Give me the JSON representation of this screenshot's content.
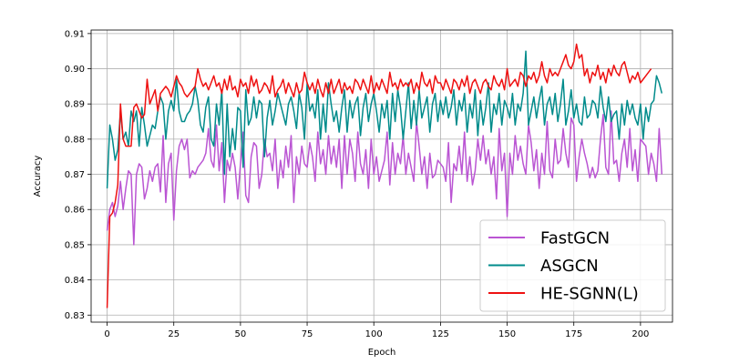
{
  "chart_data": {
    "type": "line",
    "xlabel": "Epoch",
    "ylabel": "Accuracy",
    "xlim": [
      -6,
      212
    ],
    "ylim": [
      0.828,
      0.911
    ],
    "xticks": [
      0,
      25,
      50,
      75,
      100,
      125,
      150,
      175,
      200
    ],
    "xtick_labels": [
      "0",
      "25",
      "50",
      "75",
      "100",
      "125",
      "150",
      "175",
      "200"
    ],
    "yticks": [
      0.83,
      0.84,
      0.85,
      0.86,
      0.87,
      0.88,
      0.89,
      0.9,
      0.91
    ],
    "ytick_labels": [
      "0.83",
      "0.84",
      "0.85",
      "0.86",
      "0.87",
      "0.88",
      "0.89",
      "0.90",
      "0.91"
    ],
    "grid": true,
    "legend_position": "lower-right",
    "series": [
      {
        "name": "FastGCN",
        "color": "#ba55d3",
        "x_start": 0,
        "x_step": 1,
        "values": [
          0.854,
          0.86,
          0.862,
          0.858,
          0.861,
          0.868,
          0.86,
          0.866,
          0.871,
          0.87,
          0.85,
          0.87,
          0.873,
          0.872,
          0.863,
          0.866,
          0.871,
          0.868,
          0.872,
          0.873,
          0.865,
          0.881,
          0.862,
          0.873,
          0.876,
          0.857,
          0.871,
          0.878,
          0.88,
          0.877,
          0.88,
          0.869,
          0.871,
          0.87,
          0.872,
          0.873,
          0.874,
          0.876,
          0.883,
          0.874,
          0.872,
          0.884,
          0.871,
          0.879,
          0.862,
          0.874,
          0.871,
          0.876,
          0.872,
          0.863,
          0.873,
          0.882,
          0.864,
          0.862,
          0.875,
          0.879,
          0.878,
          0.866,
          0.87,
          0.88,
          0.875,
          0.876,
          0.871,
          0.88,
          0.866,
          0.874,
          0.869,
          0.878,
          0.872,
          0.881,
          0.862,
          0.875,
          0.87,
          0.878,
          0.873,
          0.872,
          0.879,
          0.875,
          0.868,
          0.882,
          0.873,
          0.877,
          0.87,
          0.881,
          0.873,
          0.878,
          0.872,
          0.88,
          0.866,
          0.881,
          0.87,
          0.88,
          0.876,
          0.868,
          0.882,
          0.873,
          0.87,
          0.877,
          0.866,
          0.88,
          0.87,
          0.875,
          0.868,
          0.871,
          0.874,
          0.882,
          0.867,
          0.879,
          0.87,
          0.876,
          0.873,
          0.881,
          0.87,
          0.876,
          0.872,
          0.868,
          0.885,
          0.878,
          0.87,
          0.875,
          0.866,
          0.876,
          0.869,
          0.87,
          0.874,
          0.873,
          0.872,
          0.868,
          0.879,
          0.862,
          0.873,
          0.871,
          0.878,
          0.87,
          0.882,
          0.868,
          0.875,
          0.867,
          0.871,
          0.88,
          0.874,
          0.881,
          0.873,
          0.877,
          0.87,
          0.875,
          0.863,
          0.883,
          0.871,
          0.876,
          0.858,
          0.876,
          0.87,
          0.881,
          0.874,
          0.878,
          0.873,
          0.87,
          0.884,
          0.879,
          0.871,
          0.877,
          0.866,
          0.876,
          0.87,
          0.885,
          0.871,
          0.869,
          0.88,
          0.873,
          0.874,
          0.883,
          0.876,
          0.872,
          0.886,
          0.884,
          0.868,
          0.875,
          0.88,
          0.876,
          0.873,
          0.869,
          0.872,
          0.869,
          0.871,
          0.88,
          0.887,
          0.872,
          0.87,
          0.888,
          0.873,
          0.874,
          0.868,
          0.876,
          0.88,
          0.872,
          0.883,
          0.871,
          0.877,
          0.868,
          0.88,
          0.879,
          0.878,
          0.87,
          0.876,
          0.873,
          0.868,
          0.883,
          0.87
        ]
      },
      {
        "name": "ASGCN",
        "color": "#008b8b",
        "x_start": 0,
        "x_step": 1,
        "values": [
          0.866,
          0.884,
          0.88,
          0.874,
          0.877,
          0.888,
          0.88,
          0.882,
          0.878,
          0.888,
          0.885,
          0.888,
          0.878,
          0.889,
          0.884,
          0.878,
          0.881,
          0.884,
          0.883,
          0.888,
          0.892,
          0.89,
          0.88,
          0.888,
          0.891,
          0.888,
          0.897,
          0.888,
          0.885,
          0.885,
          0.887,
          0.888,
          0.89,
          0.895,
          0.891,
          0.884,
          0.882,
          0.889,
          0.892,
          0.88,
          0.878,
          0.89,
          0.884,
          0.894,
          0.87,
          0.89,
          0.875,
          0.883,
          0.877,
          0.889,
          0.888,
          0.872,
          0.894,
          0.884,
          0.886,
          0.892,
          0.886,
          0.891,
          0.89,
          0.875,
          0.886,
          0.891,
          0.884,
          0.888,
          0.893,
          0.89,
          0.887,
          0.884,
          0.89,
          0.892,
          0.888,
          0.883,
          0.893,
          0.889,
          0.88,
          0.896,
          0.888,
          0.89,
          0.886,
          0.894,
          0.88,
          0.89,
          0.882,
          0.896,
          0.89,
          0.885,
          0.888,
          0.882,
          0.889,
          0.894,
          0.882,
          0.891,
          0.886,
          0.89,
          0.892,
          0.881,
          0.889,
          0.893,
          0.885,
          0.89,
          0.893,
          0.888,
          0.882,
          0.89,
          0.886,
          0.891,
          0.88,
          0.893,
          0.885,
          0.894,
          0.889,
          0.88,
          0.888,
          0.896,
          0.883,
          0.891,
          0.884,
          0.894,
          0.886,
          0.889,
          0.892,
          0.882,
          0.89,
          0.893,
          0.885,
          0.891,
          0.887,
          0.892,
          0.886,
          0.889,
          0.894,
          0.884,
          0.891,
          0.888,
          0.893,
          0.882,
          0.89,
          0.886,
          0.894,
          0.881,
          0.891,
          0.884,
          0.889,
          0.896,
          0.882,
          0.89,
          0.887,
          0.893,
          0.884,
          0.891,
          0.889,
          0.886,
          0.893,
          0.884,
          0.89,
          0.888,
          0.893,
          0.905,
          0.884,
          0.888,
          0.892,
          0.886,
          0.891,
          0.895,
          0.884,
          0.89,
          0.892,
          0.887,
          0.893,
          0.885,
          0.89,
          0.897,
          0.884,
          0.888,
          0.894,
          0.886,
          0.89,
          0.885,
          0.884,
          0.892,
          0.886,
          0.887,
          0.891,
          0.89,
          0.886,
          0.895,
          0.889,
          0.885,
          0.892,
          0.885,
          0.887,
          0.888,
          0.88,
          0.89,
          0.884,
          0.891,
          0.887,
          0.89,
          0.886,
          0.884,
          0.89,
          0.88,
          0.889,
          0.885,
          0.89,
          0.891,
          0.898,
          0.896,
          0.893
        ]
      },
      {
        "name": "HE-SGNN(L)",
        "color": "#ee1111",
        "x_start": 0,
        "x_step": 1,
        "values": [
          0.832,
          0.858,
          0.859,
          0.862,
          0.867,
          0.89,
          0.88,
          0.878,
          0.878,
          0.878,
          0.889,
          0.89,
          0.888,
          0.886,
          0.887,
          0.897,
          0.89,
          0.892,
          0.894,
          0.888,
          0.893,
          0.894,
          0.895,
          0.894,
          0.892,
          0.895,
          0.898,
          0.896,
          0.895,
          0.893,
          0.892,
          0.893,
          0.894,
          0.895,
          0.9,
          0.897,
          0.895,
          0.896,
          0.894,
          0.896,
          0.898,
          0.895,
          0.896,
          0.893,
          0.897,
          0.894,
          0.898,
          0.894,
          0.895,
          0.892,
          0.897,
          0.895,
          0.896,
          0.893,
          0.898,
          0.895,
          0.897,
          0.893,
          0.894,
          0.896,
          0.895,
          0.893,
          0.898,
          0.892,
          0.894,
          0.895,
          0.897,
          0.893,
          0.896,
          0.894,
          0.892,
          0.896,
          0.893,
          0.894,
          0.899,
          0.896,
          0.894,
          0.896,
          0.893,
          0.897,
          0.894,
          0.892,
          0.896,
          0.893,
          0.897,
          0.893,
          0.895,
          0.897,
          0.893,
          0.896,
          0.894,
          0.895,
          0.893,
          0.897,
          0.896,
          0.894,
          0.897,
          0.895,
          0.893,
          0.898,
          0.893,
          0.896,
          0.894,
          0.897,
          0.895,
          0.893,
          0.899,
          0.895,
          0.896,
          0.894,
          0.897,
          0.895,
          0.896,
          0.895,
          0.897,
          0.893,
          0.896,
          0.894,
          0.899,
          0.896,
          0.895,
          0.897,
          0.893,
          0.898,
          0.896,
          0.896,
          0.894,
          0.897,
          0.895,
          0.893,
          0.897,
          0.896,
          0.894,
          0.897,
          0.895,
          0.898,
          0.893,
          0.896,
          0.897,
          0.895,
          0.893,
          0.896,
          0.897,
          0.895,
          0.894,
          0.898,
          0.896,
          0.895,
          0.897,
          0.894,
          0.9,
          0.895,
          0.896,
          0.897,
          0.895,
          0.899,
          0.898,
          0.895,
          0.898,
          0.897,
          0.899,
          0.896,
          0.898,
          0.902,
          0.898,
          0.896,
          0.9,
          0.898,
          0.899,
          0.898,
          0.9,
          0.902,
          0.904,
          0.901,
          0.9,
          0.902,
          0.907,
          0.903,
          0.904,
          0.898,
          0.9,
          0.896,
          0.899,
          0.898,
          0.901,
          0.897,
          0.899,
          0.896,
          0.9,
          0.898,
          0.901,
          0.899,
          0.898,
          0.901,
          0.902,
          0.899,
          0.896,
          0.898,
          0.897,
          0.899,
          0.896,
          0.897,
          0.898,
          0.899,
          0.9
        ]
      }
    ]
  }
}
